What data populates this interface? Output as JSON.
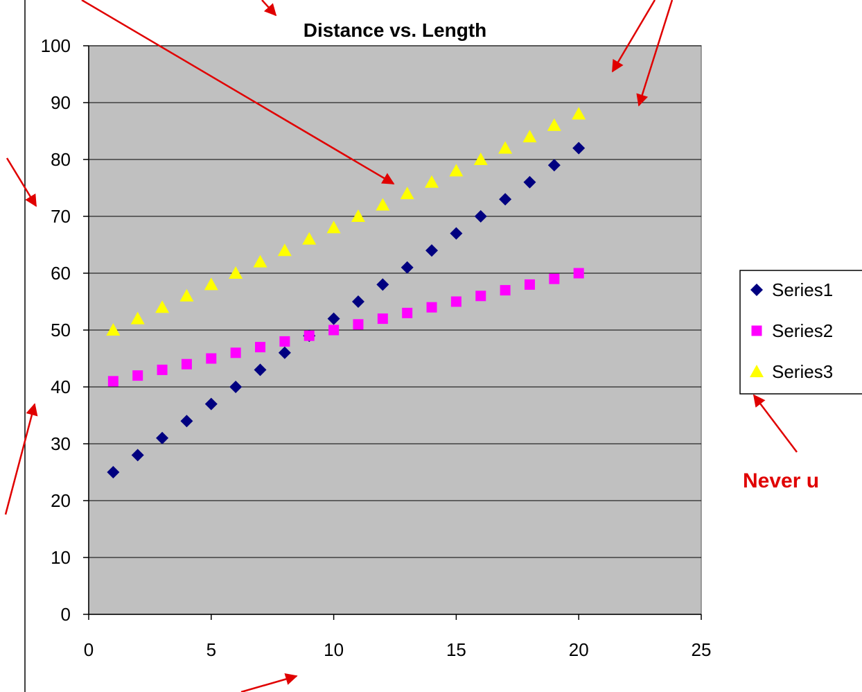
{
  "chart_data": {
    "type": "scatter",
    "title": "Distance vs. Length",
    "xlabel": "",
    "ylabel": "",
    "xlim": [
      0,
      25
    ],
    "ylim": [
      0,
      100
    ],
    "xticks": [
      0,
      5,
      10,
      15,
      20,
      25
    ],
    "yticks": [
      0,
      10,
      20,
      30,
      40,
      50,
      60,
      70,
      80,
      90,
      100
    ],
    "grid": "horizontal",
    "plot_background": "#c0c0c0",
    "legend_position": "right",
    "x": [
      1,
      2,
      3,
      4,
      5,
      6,
      7,
      8,
      9,
      10,
      11,
      12,
      13,
      14,
      15,
      16,
      17,
      18,
      19,
      20
    ],
    "series": [
      {
        "name": "Series1",
        "marker": "diamond",
        "color": "#000080",
        "values": [
          25,
          28,
          31,
          34,
          37,
          40,
          43,
          46,
          49,
          52,
          55,
          58,
          61,
          64,
          67,
          70,
          73,
          76,
          79,
          82
        ]
      },
      {
        "name": "Series2",
        "marker": "square",
        "color": "#ff00ff",
        "values": [
          41,
          42,
          43,
          44,
          45,
          46,
          47,
          48,
          49,
          50,
          51,
          52,
          53,
          54,
          55,
          56,
          57,
          58,
          59,
          60
        ]
      },
      {
        "name": "Series3",
        "marker": "triangle",
        "color": "#ffff00",
        "values": [
          50,
          52,
          54,
          56,
          58,
          60,
          62,
          64,
          66,
          68,
          70,
          72,
          74,
          76,
          78,
          80,
          82,
          84,
          86,
          88
        ]
      }
    ]
  },
  "annotation": {
    "text": "Never u",
    "color": "#e00000"
  }
}
